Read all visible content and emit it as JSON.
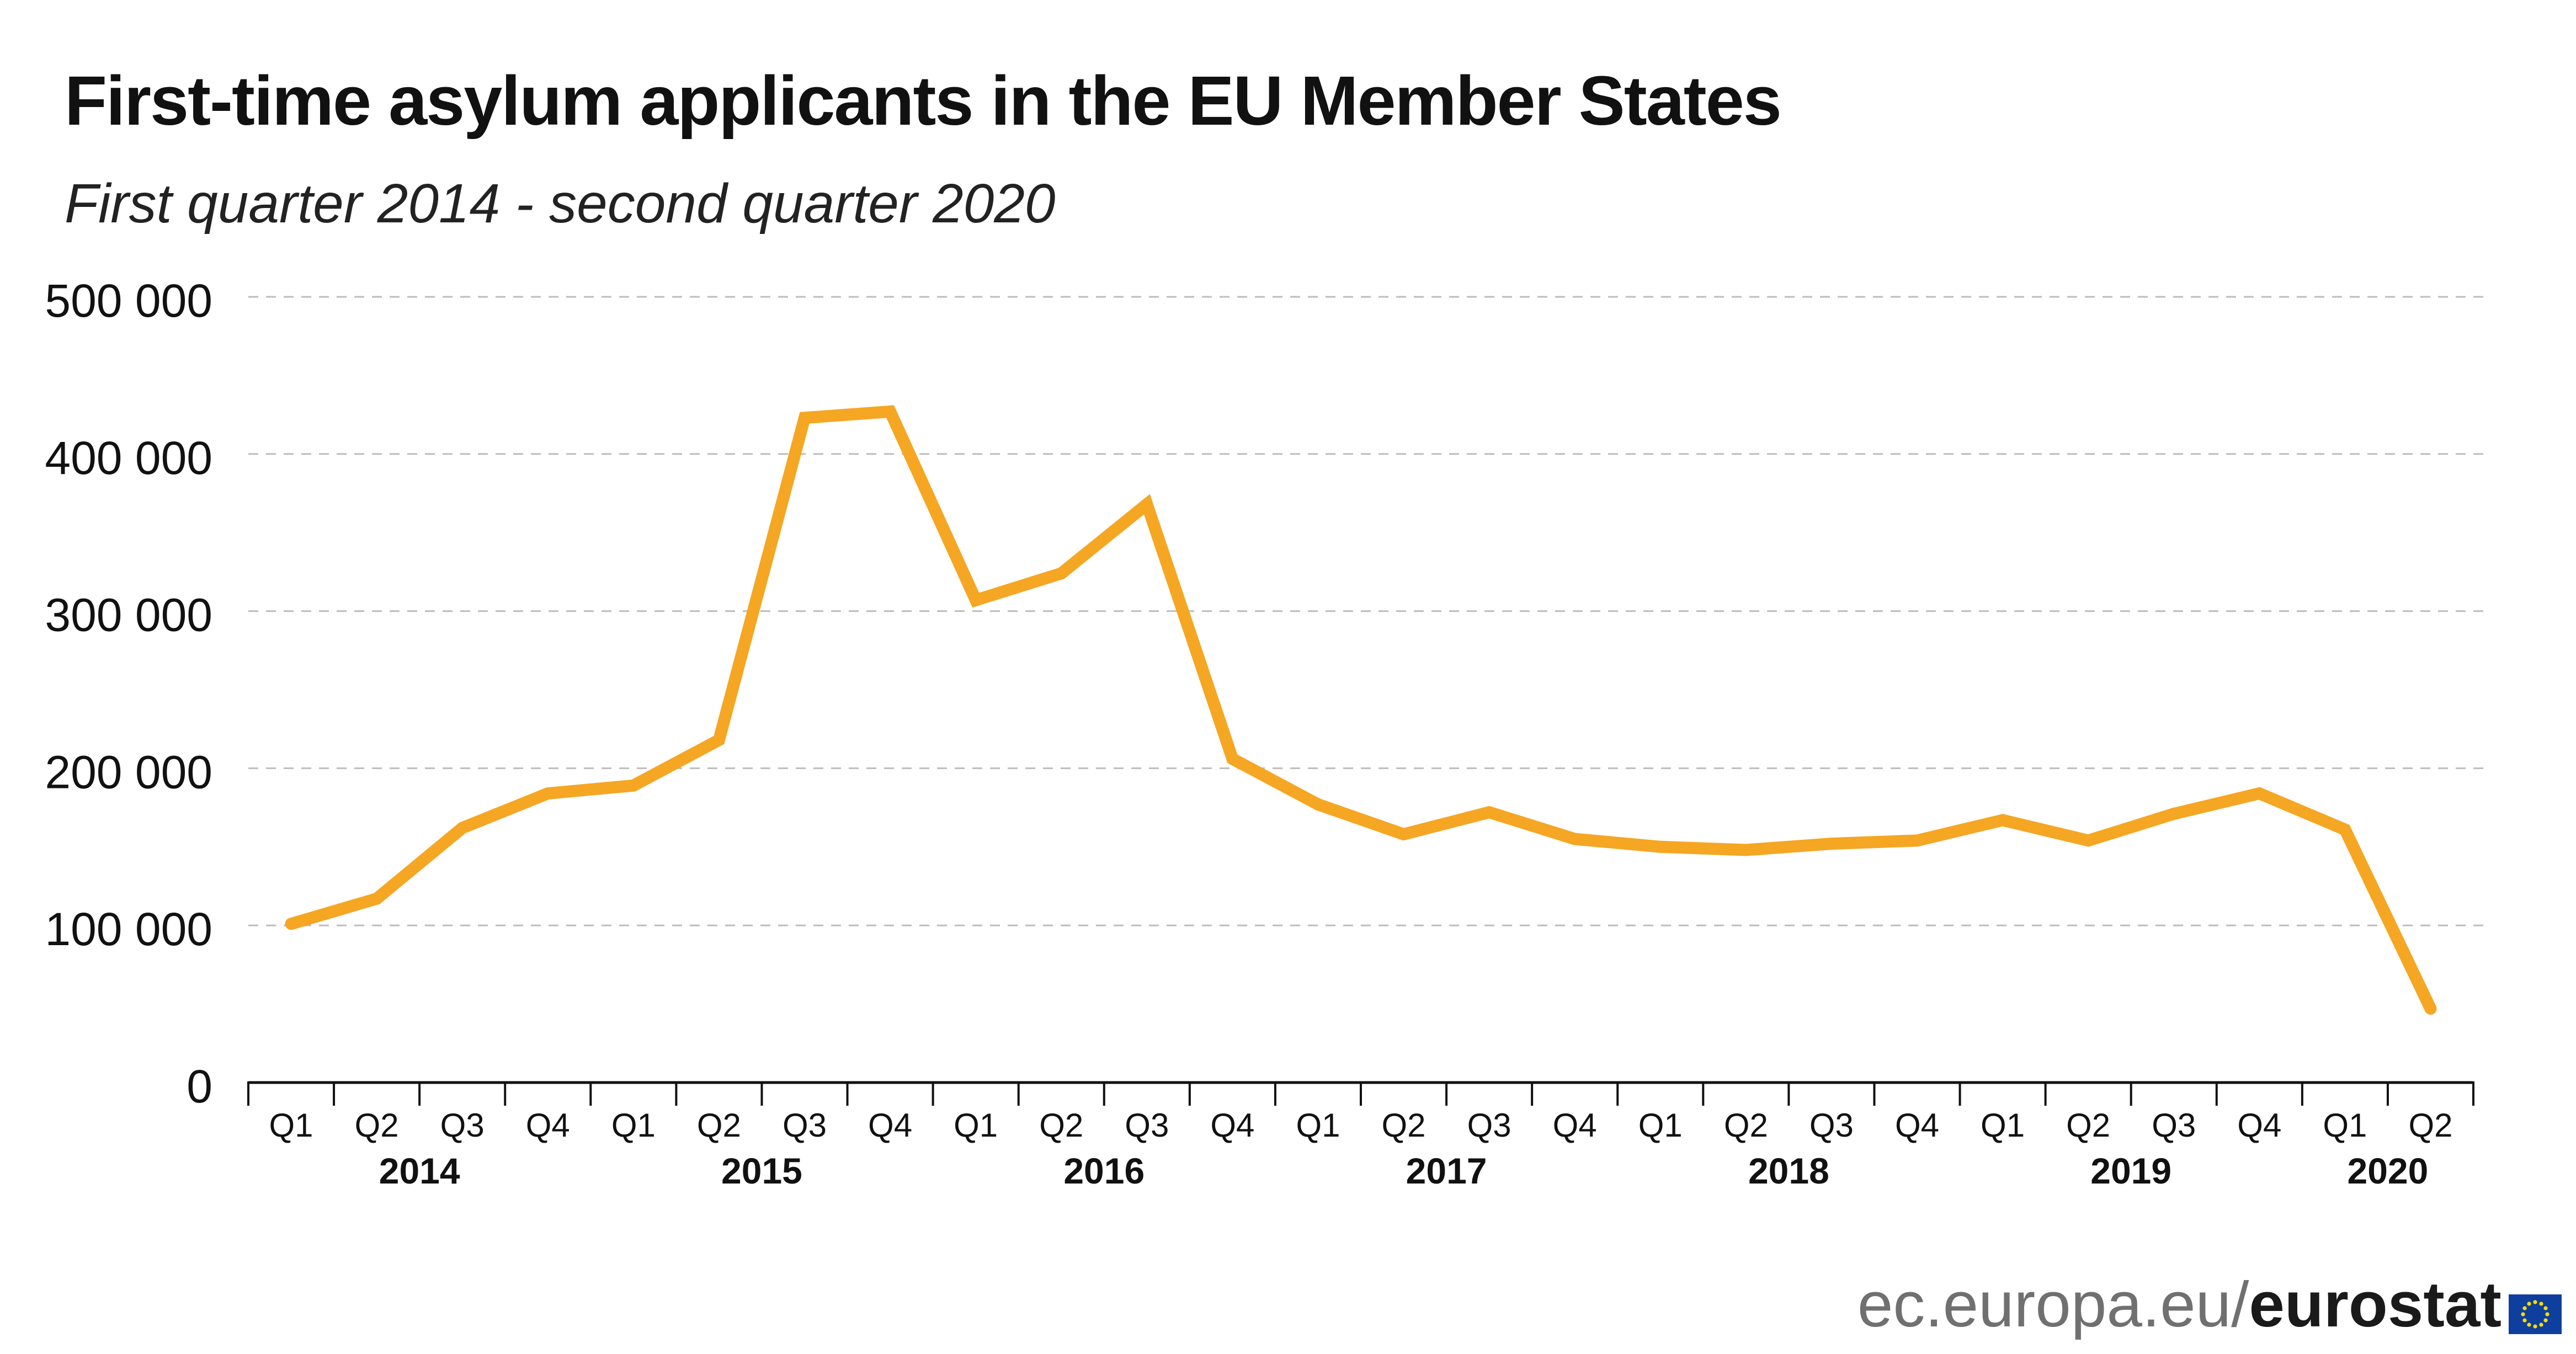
{
  "title": "First-time asylum applicants in the EU Member States",
  "subtitle": "First quarter 2014 - second quarter 2020",
  "footer": {
    "domain": "ec.europa.eu/",
    "brand": "eurostat"
  },
  "colors": {
    "line": "#F5A623",
    "grid": "#bdbdbd",
    "axis": "#111111",
    "text": "#111111"
  },
  "chart_data": {
    "type": "line",
    "title": "First-time asylum applicants in the EU Member States",
    "subtitle": "First quarter 2014 - second quarter 2020",
    "ylim": [
      0,
      500000
    ],
    "yticks": [
      0,
      100000,
      200000,
      300000,
      400000,
      500000
    ],
    "ytick_labels": [
      "0",
      "100 000",
      "200 000",
      "300 000",
      "400 000",
      "500 000"
    ],
    "grid": true,
    "categories": [
      "Q1",
      "Q2",
      "Q3",
      "Q4",
      "Q1",
      "Q2",
      "Q3",
      "Q4",
      "Q1",
      "Q2",
      "Q3",
      "Q4",
      "Q1",
      "Q2",
      "Q3",
      "Q4",
      "Q1",
      "Q2",
      "Q3",
      "Q4",
      "Q1",
      "Q2",
      "Q3",
      "Q4",
      "Q1",
      "Q2"
    ],
    "years": [
      {
        "label": "2014",
        "start": 0,
        "end": 3
      },
      {
        "label": "2015",
        "start": 4,
        "end": 7
      },
      {
        "label": "2016",
        "start": 8,
        "end": 11
      },
      {
        "label": "2017",
        "start": 12,
        "end": 15
      },
      {
        "label": "2018",
        "start": 16,
        "end": 19
      },
      {
        "label": "2019",
        "start": 20,
        "end": 23
      },
      {
        "label": "2020",
        "start": 24,
        "end": 25
      }
    ],
    "series": [
      {
        "values": [
          101000,
          117000,
          162000,
          184000,
          189000,
          218000,
          423000,
          427000,
          307000,
          324000,
          368000,
          206000,
          177000,
          158000,
          172000,
          155000,
          150000,
          148000,
          152000,
          154000,
          167000,
          154000,
          171000,
          184000,
          161000,
          47000
        ]
      }
    ]
  }
}
